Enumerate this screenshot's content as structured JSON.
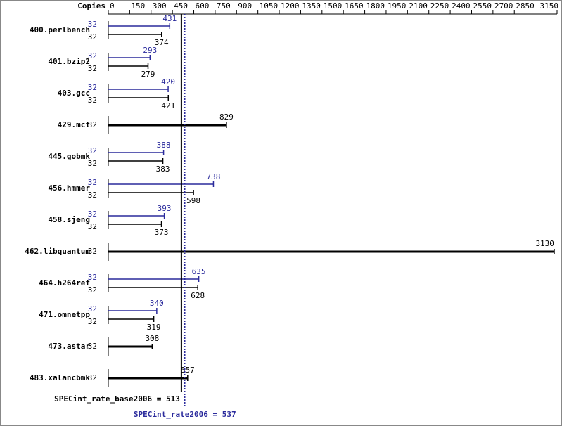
{
  "chart_data": {
    "type": "bar",
    "orientation": "horizontal",
    "copies_label": "Copies",
    "categories": [
      "400.perlbench",
      "401.bzip2",
      "403.gcc",
      "429.mcf",
      "445.gobmk",
      "456.hmmer",
      "458.sjeng",
      "462.libquantum",
      "464.h264ref",
      "471.omnetpp",
      "473.astar",
      "483.xalancbmk"
    ],
    "series": [
      {
        "color": "#2a2a9c",
        "values": [
          431,
          293,
          420,
          null,
          388,
          738,
          393,
          null,
          635,
          340,
          null,
          null
        ],
        "copies": [
          32,
          32,
          32,
          null,
          32,
          32,
          32,
          null,
          32,
          32,
          null,
          null
        ]
      },
      {
        "color": "#000000",
        "values": [
          374,
          279,
          421,
          829,
          383,
          598,
          373,
          3130,
          628,
          319,
          308,
          557
        ],
        "copies": [
          32,
          32,
          32,
          32,
          32,
          32,
          32,
          32,
          32,
          32,
          32,
          32
        ]
      }
    ],
    "xlim": [
      0,
      3150
    ],
    "xticks": [
      0,
      150,
      300,
      450,
      600,
      750,
      900,
      1050,
      1200,
      1350,
      1500,
      1650,
      1800,
      1950,
      2100,
      2250,
      2400,
      2550,
      2700,
      2850,
      3150
    ],
    "reference_lines": [
      {
        "label": "SPECint_rate_base2006 = 513",
        "value": 513,
        "color": "#000000"
      },
      {
        "label": "SPECint_rate2006 = 537",
        "value": 537,
        "color": "#2a2a9c"
      }
    ]
  }
}
